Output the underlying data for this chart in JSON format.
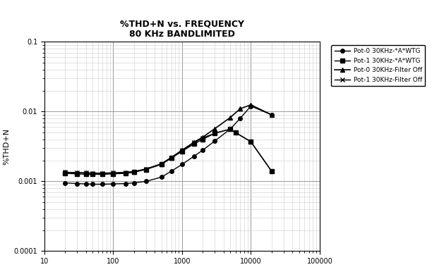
{
  "title_line1": "%THD+N vs. FREQUENCY",
  "title_line2": "80 KHz BANDLIMITED",
  "xlabel": "",
  "ylabel": "%THD+N",
  "xlim": [
    10,
    100000
  ],
  "ylim": [
    0.0001,
    0.1
  ],
  "background_color": "#ffffff",
  "grid_major_color": "#999999",
  "grid_minor_color": "#cccccc",
  "series": [
    {
      "label": "Pot-0 30KHz-*A*WTG",
      "marker": "o",
      "markersize": 4,
      "color": "#000000",
      "linewidth": 1.0,
      "x": [
        20,
        30,
        40,
        50,
        70,
        100,
        150,
        200,
        300,
        500,
        700,
        1000,
        1500,
        2000,
        3000,
        5000,
        7000,
        10000,
        20000
      ],
      "y": [
        0.00095,
        0.00093,
        0.00092,
        0.00091,
        0.00091,
        0.00092,
        0.00093,
        0.00095,
        0.001,
        0.00115,
        0.0014,
        0.00175,
        0.0023,
        0.0028,
        0.0038,
        0.0056,
        0.008,
        0.012,
        0.009
      ]
    },
    {
      "label": "Pot-1 30KHz-*A*WTG",
      "marker": "s",
      "markersize": 4,
      "color": "#000000",
      "linewidth": 1.0,
      "x": [
        20,
        30,
        40,
        50,
        70,
        100,
        150,
        200,
        300,
        500,
        700,
        1000,
        1500,
        2000,
        3000,
        5000,
        6000,
        10000,
        20000
      ],
      "y": [
        0.0013,
        0.00128,
        0.00126,
        0.00126,
        0.00126,
        0.00128,
        0.0013,
        0.00135,
        0.00148,
        0.00175,
        0.00215,
        0.0027,
        0.00345,
        0.004,
        0.0049,
        0.0056,
        0.005,
        0.0037,
        0.0014
      ]
    },
    {
      "label": "Pot-0 30KHz-Filter Off",
      "marker": "^",
      "markersize": 4,
      "color": "#000000",
      "linewidth": 1.2,
      "x": [
        20,
        30,
        40,
        50,
        70,
        100,
        150,
        200,
        300,
        500,
        700,
        1000,
        1500,
        2000,
        3000,
        5000,
        7000,
        10000,
        20000
      ],
      "y": [
        0.00135,
        0.00133,
        0.00132,
        0.00131,
        0.00131,
        0.00132,
        0.00134,
        0.00138,
        0.0015,
        0.00178,
        0.0022,
        0.0028,
        0.00365,
        0.0043,
        0.0057,
        0.0082,
        0.011,
        0.0125,
        0.009
      ]
    },
    {
      "label": "Pot-1 30KHz-Filter Off",
      "marker": "x",
      "markersize": 5,
      "color": "#000000",
      "linewidth": 1.0,
      "x": [
        20,
        30,
        40,
        50,
        70,
        100,
        150,
        200,
        300,
        500,
        700,
        1000,
        1500,
        2000,
        3000,
        5000,
        6000,
        10000,
        20000
      ],
      "y": [
        0.00135,
        0.00133,
        0.00132,
        0.00131,
        0.00131,
        0.00132,
        0.00134,
        0.00138,
        0.0015,
        0.00178,
        0.0022,
        0.00278,
        0.0036,
        0.0042,
        0.0049,
        0.0056,
        0.005,
        0.0037,
        0.0014
      ]
    }
  ]
}
